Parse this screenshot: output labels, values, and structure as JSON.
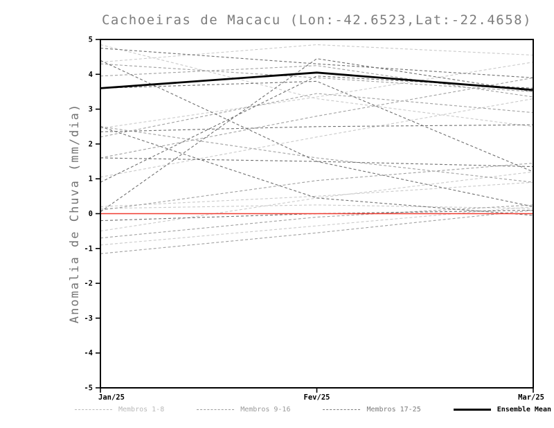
{
  "title": "Cachoeiras de Macacu (Lon:-42.6523,Lat:-22.4658)",
  "chart_data": {
    "type": "line",
    "x": [
      "Jan/25",
      "Fev/25",
      "Mar/25"
    ],
    "ylabel": "Anomalia de Chuva (mm/dia)",
    "ylim": [
      -5,
      5
    ],
    "yticks": [
      -5,
      -4,
      -3,
      -2,
      -1,
      0,
      1,
      2,
      3,
      4,
      5
    ],
    "grid": false,
    "legend_position": "bottom",
    "group_colors": {
      "1-8": "#c9c9c9",
      "9-16": "#9f9f9f",
      "17-25": "#6e6e6e"
    },
    "zero_line": {
      "color": "#f03b30",
      "values": [
        0,
        0,
        0
      ]
    },
    "ensemble_mean": {
      "label": "Ensemble Mean",
      "color": "#000000",
      "values": [
        3.6,
        4.05,
        3.55
      ]
    },
    "members": [
      {
        "group": "1-8",
        "values": [
          4.85,
          3.3,
          2.5
        ]
      },
      {
        "group": "1-8",
        "values": [
          4.35,
          4.85,
          4.55
        ]
      },
      {
        "group": "1-8",
        "values": [
          2.45,
          3.35,
          4.35
        ]
      },
      {
        "group": "1-8",
        "values": [
          0.2,
          0.5,
          0.9
        ]
      },
      {
        "group": "1-8",
        "values": [
          -0.5,
          0.45,
          1.2
        ]
      },
      {
        "group": "1-8",
        "values": [
          -0.9,
          -0.35,
          0.2
        ]
      },
      {
        "group": "1-8",
        "values": [
          1.05,
          2.2,
          3.3
        ]
      },
      {
        "group": "1-8",
        "values": [
          0.15,
          0.25,
          0.15
        ]
      },
      {
        "group": "9-16",
        "values": [
          4.3,
          3.9,
          3.5
        ]
      },
      {
        "group": "9-16",
        "values": [
          2.5,
          1.6,
          0.9
        ]
      },
      {
        "group": "9-16",
        "values": [
          1.6,
          2.8,
          3.9
        ]
      },
      {
        "group": "9-16",
        "values": [
          0.1,
          0.95,
          1.45
        ]
      },
      {
        "group": "9-16",
        "values": [
          -1.15,
          -0.55,
          0.1
        ]
      },
      {
        "group": "9-16",
        "values": [
          2.2,
          3.45,
          2.9
        ]
      },
      {
        "group": "9-16",
        "values": [
          -0.7,
          -0.1,
          0.25
        ]
      },
      {
        "group": "9-16",
        "values": [
          3.95,
          4.25,
          3.35
        ]
      },
      {
        "group": "17-25",
        "values": [
          4.4,
          1.5,
          0.2
        ]
      },
      {
        "group": "17-25",
        "values": [
          0.9,
          3.95,
          3.6
        ]
      },
      {
        "group": "17-25",
        "values": [
          2.35,
          2.5,
          2.55
        ]
      },
      {
        "group": "17-25",
        "values": [
          -0.2,
          0.0,
          0.1
        ]
      },
      {
        "group": "17-25",
        "values": [
          1.6,
          1.5,
          1.35
        ]
      },
      {
        "group": "17-25",
        "values": [
          3.6,
          3.8,
          1.2
        ]
      },
      {
        "group": "17-25",
        "values": [
          0.05,
          4.45,
          3.5
        ]
      },
      {
        "group": "17-25",
        "values": [
          2.5,
          0.45,
          -0.05
        ]
      },
      {
        "group": "17-25",
        "values": [
          4.75,
          4.3,
          3.9
        ]
      }
    ],
    "legend": [
      {
        "label": "Membros 1-8",
        "color": "#b9b9b9",
        "style": "dashed"
      },
      {
        "label": "Membros 9-16",
        "color": "#9a9a9a",
        "style": "dashed"
      },
      {
        "label": "Membros 17-25",
        "color": "#7a7a7a",
        "style": "dashed"
      },
      {
        "label": "Ensemble Mean",
        "color": "#000000",
        "style": "solid"
      }
    ]
  }
}
